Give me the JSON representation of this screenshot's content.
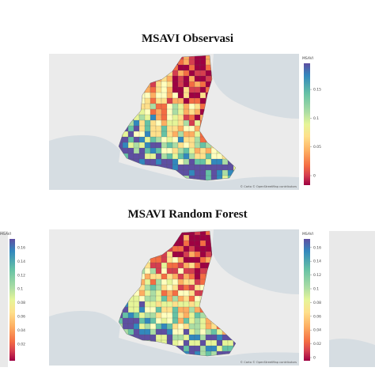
{
  "maps": [
    {
      "title": "MSAVI Observasi",
      "colorbar": {
        "title": "MSAVI",
        "ticks": [
          "0.15",
          "0.1",
          "0.05",
          "0"
        ]
      },
      "attribution": "© Carto © OpenStreetMap contributors"
    },
    {
      "title": "MSAVI Random Forest",
      "colorbar": {
        "title": "MSAVI",
        "ticks": [
          "0.16",
          "0.14",
          "0.12",
          "0.1",
          "0.08",
          "0.06",
          "0.04",
          "0.02",
          "0"
        ]
      },
      "attribution": "© Carto © OpenStreetMap contributors"
    }
  ],
  "side_colorbar": {
    "title": "MSAVI",
    "ticks": [
      "0.16",
      "0.14",
      "0.12",
      "0.1",
      "0.08",
      "0.06",
      "0.04",
      "0.02"
    ]
  }
}
